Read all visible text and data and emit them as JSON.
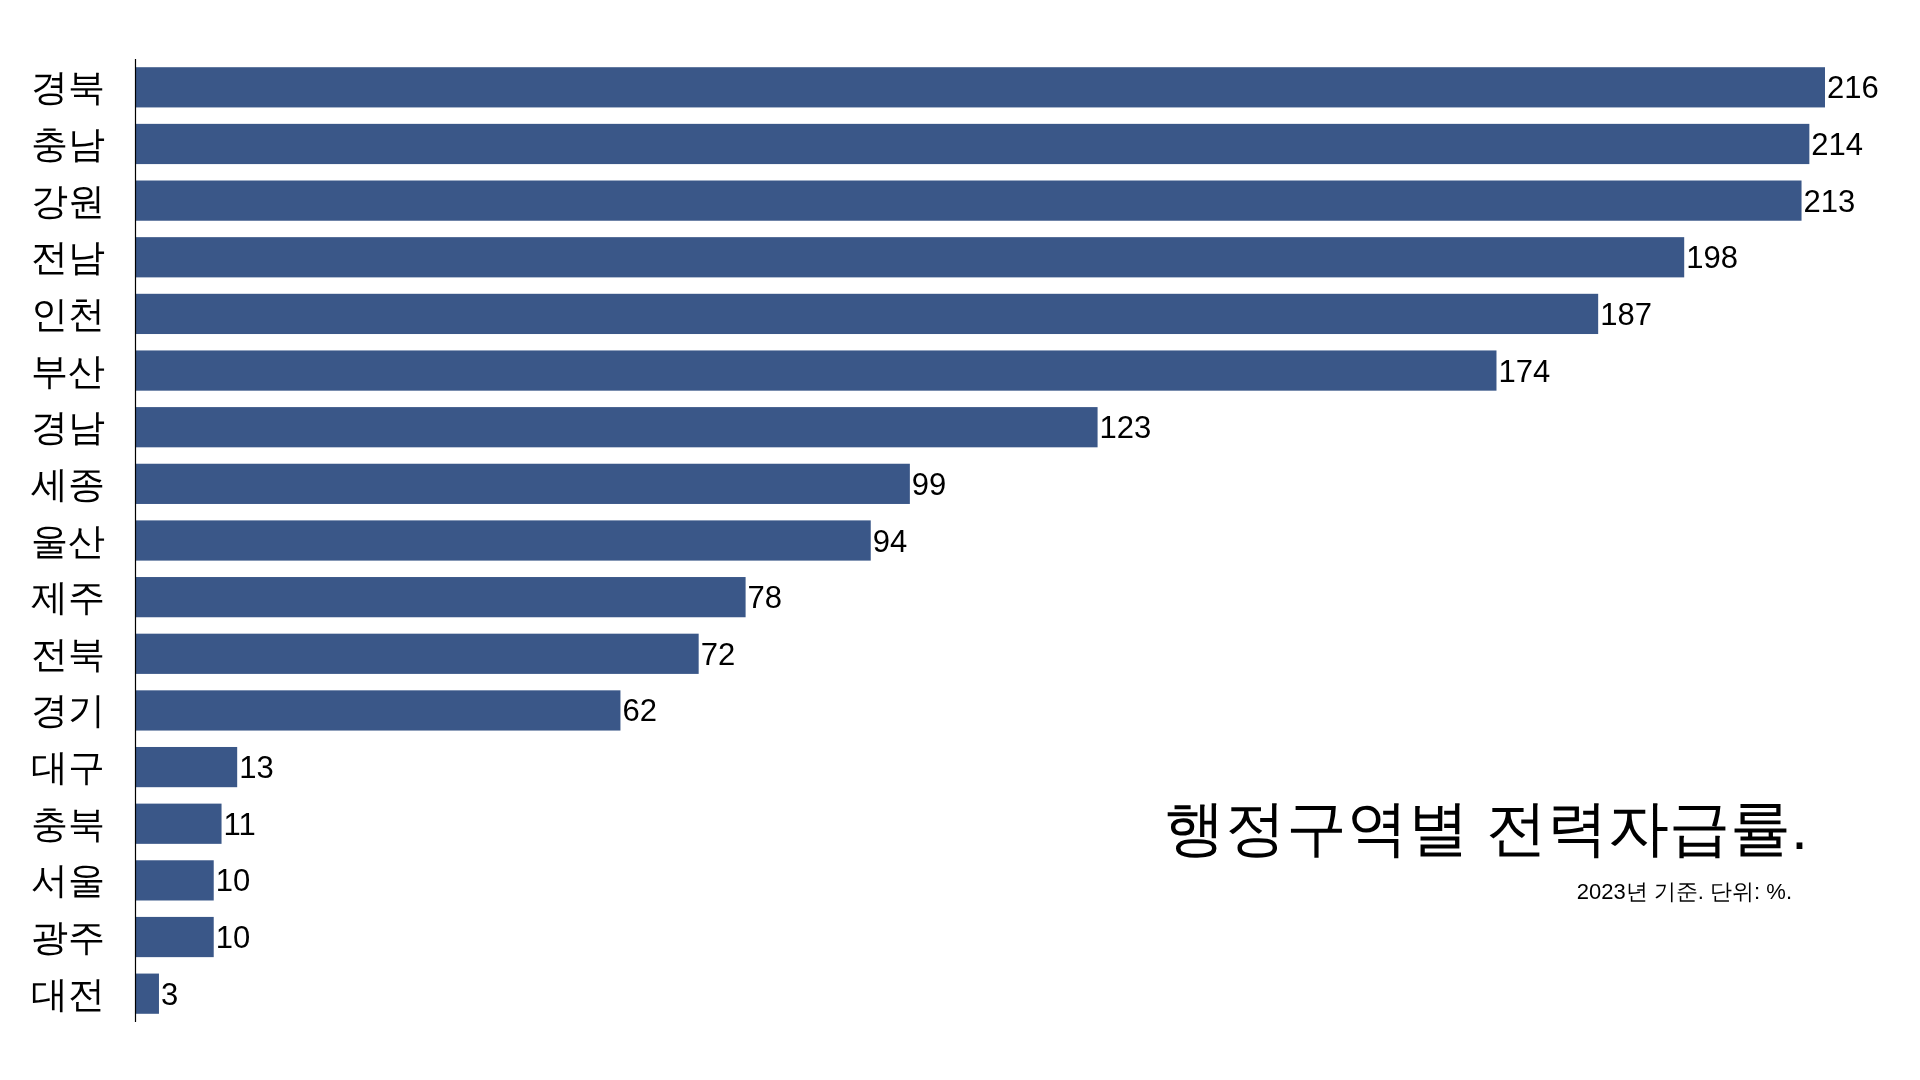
{
  "chart_data": {
    "type": "bar",
    "orientation": "horizontal",
    "title": "행정구역별 전력자급률.",
    "annotations": [
      "2023년 기준. 단위: %."
    ],
    "categories": [
      "경북",
      "충남",
      "강원",
      "전남",
      "인천",
      "부산",
      "경남",
      "세종",
      "울산",
      "제주",
      "전북",
      "경기",
      "대구",
      "충북",
      "서울",
      "광주",
      "대전"
    ],
    "values": [
      216,
      214,
      213,
      198,
      187,
      174,
      123,
      99,
      94,
      78,
      72,
      62,
      13,
      11,
      10,
      10,
      3
    ],
    "color": "#3a5788",
    "data_labels": true
  }
}
